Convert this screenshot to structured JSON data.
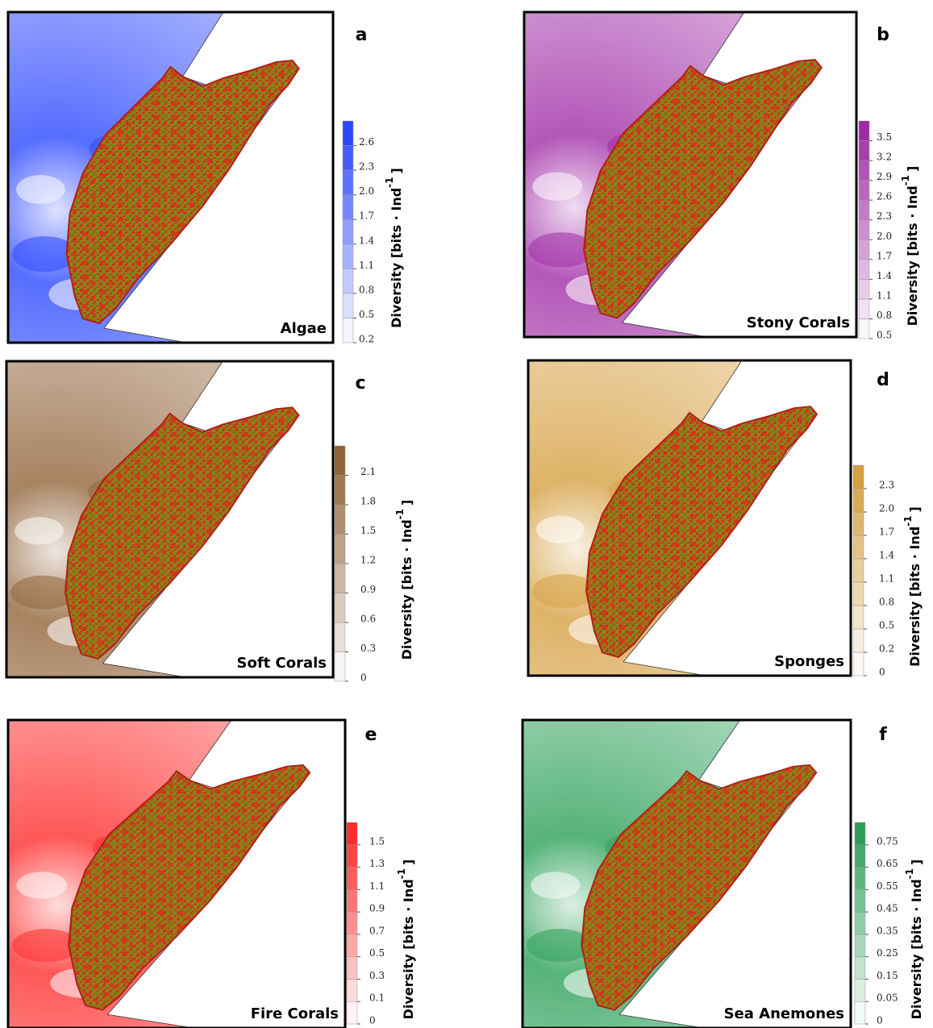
{
  "colorbar_label": {
    "text": "Diversity [bits · Ind",
    "superscript": "-1",
    "suffix": "]"
  },
  "panels": [
    {
      "letter": "a",
      "label": "Algae",
      "color": "#1f3cff",
      "ticks": [
        "0.2",
        "0.5",
        "0.8",
        "1.1",
        "1.4",
        "1.7",
        "2.0",
        "2.3",
        "2.6"
      ]
    },
    {
      "letter": "b",
      "label": "Stony Corals",
      "color": "#9a1fa0",
      "ticks": [
        "0.5",
        "0.8",
        "1.1",
        "1.4",
        "1.7",
        "2.0",
        "2.3",
        "2.6",
        "2.9",
        "3.2",
        "3.5"
      ]
    },
    {
      "letter": "c",
      "label": "Soft Corals",
      "color": "#8a5a2c",
      "ticks": [
        "0",
        "0.3",
        "0.6",
        "0.9",
        "1.2",
        "1.5",
        "1.8",
        "2.1"
      ]
    },
    {
      "letter": "d",
      "label": "Sponges",
      "color": "#d39a35",
      "ticks": [
        "0",
        "0.2",
        "0.5",
        "0.8",
        "1.1",
        "1.4",
        "1.7",
        "2.0",
        "2.3"
      ]
    },
    {
      "letter": "e",
      "label": "Fire Corals",
      "color": "#ff1f1f",
      "ticks": [
        "0",
        "0.1",
        "0.3",
        "0.5",
        "0.7",
        "0.9",
        "1.1",
        "1.3",
        "1.5"
      ]
    },
    {
      "letter": "f",
      "label": "Sea Anemones",
      "color": "#1e9a4c",
      "ticks": [
        "0",
        "0.05",
        "0.15",
        "0.25",
        "0.35",
        "0.45",
        "0.55",
        "0.65",
        "0.75"
      ]
    }
  ]
}
